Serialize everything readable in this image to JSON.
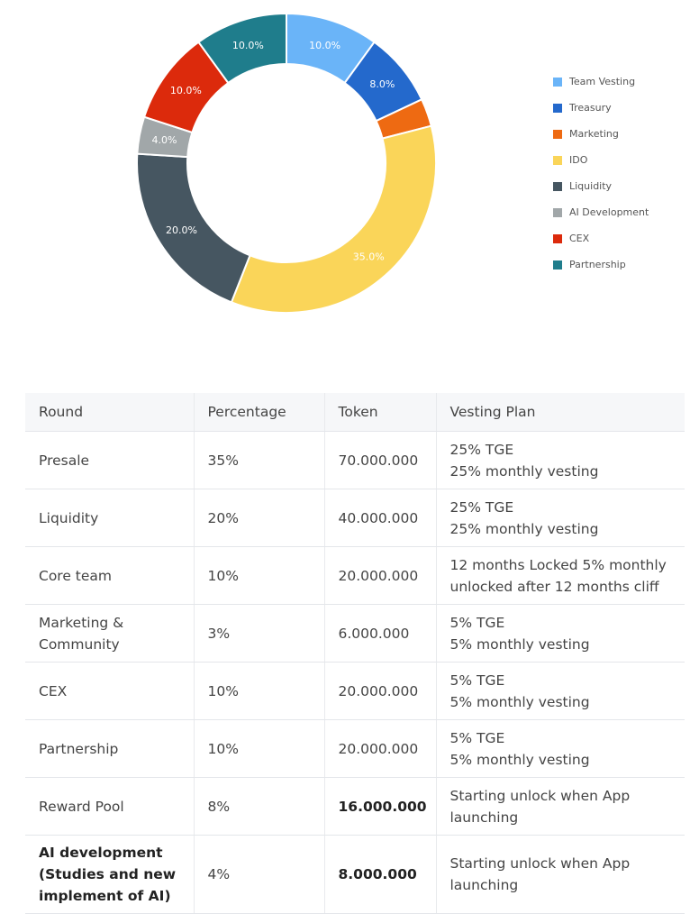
{
  "chart_data": {
    "type": "pie",
    "title": "",
    "series": [
      {
        "name": "Team Vesting",
        "value": 10.0,
        "label": "10.0%",
        "color": "#6ab4f8"
      },
      {
        "name": "Treasury",
        "value": 8.0,
        "label": "8.0%",
        "color": "#2469cc"
      },
      {
        "name": "Marketing",
        "value": 3.0,
        "label": "",
        "color": "#ee6a12"
      },
      {
        "name": "IDO",
        "value": 35.0,
        "label": "35.0%",
        "color": "#fad559"
      },
      {
        "name": "Liquidity",
        "value": 20.0,
        "label": "20.0%",
        "color": "#465661"
      },
      {
        "name": "AI Development",
        "value": 4.0,
        "label": "4.0%",
        "color": "#a1a7a9"
      },
      {
        "name": "CEX",
        "value": 10.0,
        "label": "10.0%",
        "color": "#dc2a0c"
      },
      {
        "name": "Partnership",
        "value": 10.0,
        "label": "10.0%",
        "color": "#1f7d8c"
      }
    ],
    "legend_position": "right"
  },
  "table": {
    "headers": [
      "Round",
      "Percentage",
      "Token",
      "Vesting Plan"
    ],
    "rows": [
      {
        "round": [
          "Presale"
        ],
        "percentage": "35%",
        "token": "70.000.000",
        "vesting": [
          "25% TGE",
          "25% monthly vesting"
        ]
      },
      {
        "round": [
          "Liquidity"
        ],
        "percentage": "20%",
        "token": "40.000.000",
        "vesting": [
          "25% TGE",
          "25% monthly vesting"
        ]
      },
      {
        "round": [
          "Core team"
        ],
        "percentage": "10%",
        "token": "20.000.000",
        "vesting": [
          "12 months Locked  5% monthly",
          "unlocked after 12 months cliff"
        ]
      },
      {
        "round": [
          "Marketing &",
          "Community"
        ],
        "percentage": "3%",
        "token": "6.000.000",
        "vesting": [
          "5% TGE",
          "5% monthly vesting"
        ]
      },
      {
        "round": [
          "CEX"
        ],
        "percentage": "10%",
        "token": "20.000.000",
        "vesting": [
          "5% TGE",
          "5% monthly vesting"
        ]
      },
      {
        "round": [
          "Partnership"
        ],
        "percentage": "10%",
        "token": "20.000.000",
        "vesting": [
          "5% TGE",
          "5% monthly vesting"
        ]
      },
      {
        "round": [
          "Reward Pool"
        ],
        "percentage": "8%",
        "token": "16.000.000",
        "token_bold": true,
        "vesting": [
          "Starting unlock when App",
          "launching"
        ]
      },
      {
        "round": [
          "AI development",
          "(Studies and new",
          "implement of AI)"
        ],
        "round_bold": true,
        "percentage": "4%",
        "token": "8.000.000",
        "token_bold": true,
        "vesting": [
          "Starting unlock when App",
          "launching"
        ],
        "tall": true
      }
    ]
  }
}
